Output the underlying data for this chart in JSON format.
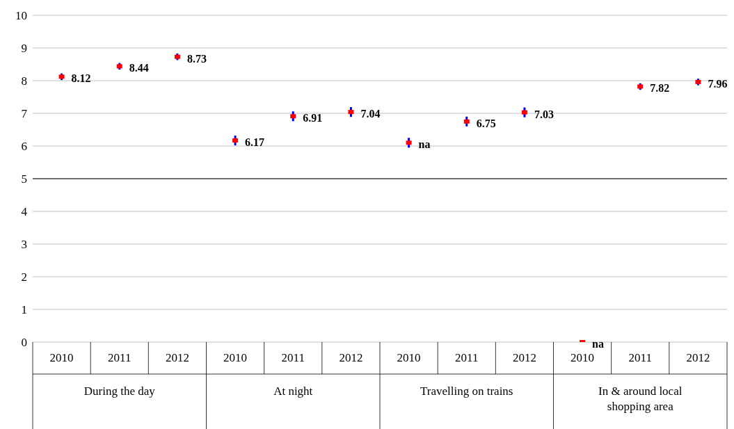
{
  "chart_data": {
    "type": "scatter",
    "categories": [
      "2010",
      "2011",
      "2012",
      "2010",
      "2011",
      "2012",
      "2010",
      "2011",
      "2012",
      "2010",
      "2011",
      "2012"
    ],
    "series": [
      {
        "color": "#ff0000",
        "values": [
          8.12,
          8.44,
          8.73,
          6.17,
          6.91,
          7.04,
          6.1,
          6.75,
          7.03,
          0,
          7.82,
          7.96
        ],
        "errors": [
          0.1,
          0.1,
          0.1,
          0.15,
          0.15,
          0.15,
          0.15,
          0.15,
          0.15,
          null,
          0.1,
          0.1
        ],
        "value_labels": [
          "8.12",
          "8.44",
          "8.73",
          "6.17",
          "6.91",
          "7.04",
          "na",
          "6.75",
          "7.03",
          "na",
          "7.82",
          "7.96"
        ]
      }
    ],
    "annotations": [
      "During the day",
      "At night",
      "Travelling on trains",
      "In & around local shopping area"
    ],
    "ylim": [
      0,
      10
    ],
    "yticks": [
      0,
      1,
      2,
      3,
      4,
      5,
      6,
      7,
      8,
      9,
      10
    ],
    "grid": "y",
    "marker": "square",
    "legend": false,
    "ref_lines": [
      {
        "axis": "y",
        "value": 5,
        "color": "#000000"
      }
    ]
  }
}
